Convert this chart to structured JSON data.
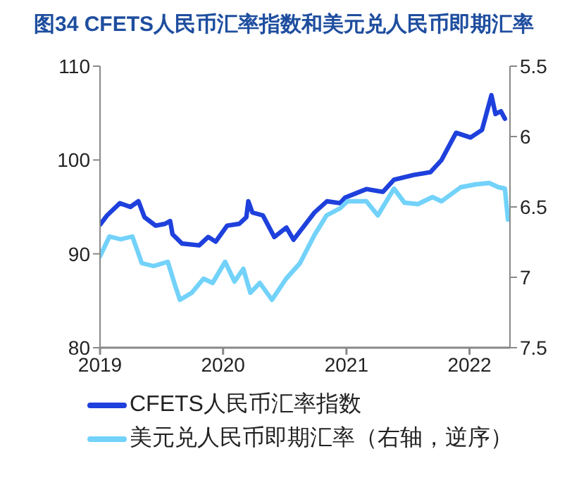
{
  "chart_data": {
    "type": "line",
    "title": "图34  CFETS人民币汇率指数和美元兑人民币即期汇率",
    "xlim": [
      "2019-01-01",
      "2022-05-01"
    ],
    "xticks": [
      "2019",
      "2020",
      "2021",
      "2022"
    ],
    "ylim": [
      80,
      110
    ],
    "yticks": [
      80,
      90,
      100,
      110
    ],
    "y2lim": [
      7.5,
      5.5
    ],
    "y2ticks": [
      5.5,
      6,
      6.5,
      7,
      7.5
    ],
    "legend": "bottom",
    "line_style": "solid",
    "series": [
      {
        "name": "CFETS人民币汇率指数",
        "color": "#1e40dc",
        "x": [
          "2019-01-01",
          "2019-01-22",
          "2019-03-01",
          "2019-04-01",
          "2019-04-25",
          "2019-05-13",
          "2019-06-15",
          "2019-07-13",
          "2019-07-28",
          "2019-08-04",
          "2019-09-01",
          "2019-10-22",
          "2019-11-18",
          "2019-12-10",
          "2020-01-13",
          "2020-02-18",
          "2020-03-10",
          "2020-03-16",
          "2020-03-28",
          "2020-04-28",
          "2020-06-01",
          "2020-07-07",
          "2020-07-28",
          "2020-09-28",
          "2020-11-04",
          "2020-12-13",
          "2020-12-28",
          "2021-03-01",
          "2021-04-19",
          "2021-05-22",
          "2021-07-19",
          "2021-09-07",
          "2021-10-10",
          "2021-11-22",
          "2022-01-04",
          "2022-02-07",
          "2022-03-07",
          "2022-03-19",
          "2022-04-04",
          "2022-04-16"
        ],
        "values": [
          93.1,
          94.1,
          95.4,
          95.0,
          95.6,
          93.9,
          93.0,
          93.2,
          93.5,
          92.1,
          91.1,
          90.9,
          91.8,
          91.3,
          93.0,
          93.2,
          93.9,
          95.6,
          94.4,
          94.1,
          91.8,
          92.8,
          91.5,
          94.4,
          95.6,
          95.4,
          96.0,
          96.9,
          96.6,
          97.9,
          98.4,
          98.7,
          100.0,
          102.9,
          102.4,
          103.2,
          106.9,
          104.9,
          105.2,
          104.4
        ]
      },
      {
        "name": "美元兑人民币即期汇率（右轴，逆序）",
        "color": "#72d2fa",
        "axis": "y2",
        "x": [
          "2019-01-01",
          "2019-01-29",
          "2019-03-03",
          "2019-04-07",
          "2019-05-05",
          "2019-06-09",
          "2019-07-21",
          "2019-08-12",
          "2019-08-26",
          "2019-09-30",
          "2019-11-04",
          "2019-12-01",
          "2020-01-07",
          "2020-02-04",
          "2020-03-01",
          "2020-03-22",
          "2020-04-19",
          "2020-05-25",
          "2020-07-06",
          "2020-08-16",
          "2020-09-28",
          "2020-11-03",
          "2020-12-13",
          "2021-01-04",
          "2021-03-01",
          "2021-04-04",
          "2021-05-22",
          "2021-06-22",
          "2021-08-01",
          "2021-09-13",
          "2021-10-10",
          "2021-12-06",
          "2022-01-19",
          "2022-02-28",
          "2022-03-28",
          "2022-04-16",
          "2022-04-25"
        ],
        "values": [
          6.85,
          6.71,
          6.73,
          6.71,
          6.9,
          6.92,
          6.89,
          7.06,
          7.16,
          7.11,
          7.01,
          7.04,
          6.89,
          7.03,
          6.94,
          7.11,
          7.04,
          7.16,
          7.01,
          6.9,
          6.7,
          6.56,
          6.51,
          6.46,
          6.46,
          6.56,
          6.37,
          6.47,
          6.48,
          6.43,
          6.46,
          6.36,
          6.34,
          6.33,
          6.36,
          6.37,
          6.59
        ]
      }
    ]
  }
}
